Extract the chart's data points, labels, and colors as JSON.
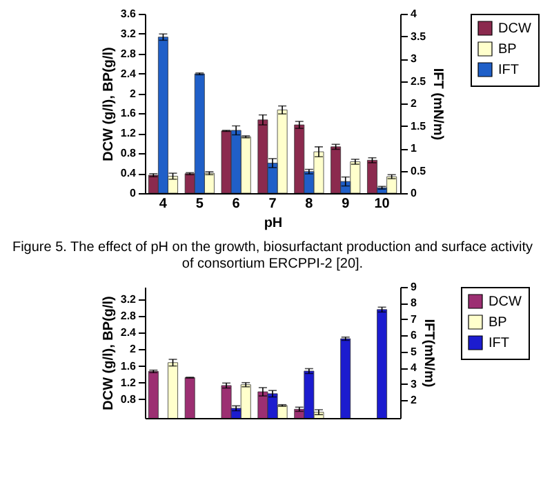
{
  "chart_data": [
    {
      "type": "bar",
      "xlabel": "pH",
      "ylabel": "DCW (g/l), BP(g/l)",
      "y2label": "IFT (mN/m)",
      "categories": [
        "4",
        "5",
        "6",
        "7",
        "8",
        "9",
        "10"
      ],
      "series": [
        {
          "name": "DCW",
          "color": "#8b2a4e",
          "values": [
            0.36,
            0.39,
            1.25,
            1.47,
            1.37,
            0.93,
            0.66
          ],
          "errors": [
            0.03,
            0.02,
            0.01,
            0.1,
            0.07,
            0.05,
            0.05
          ]
        },
        {
          "name": "IFT",
          "color": "#1f5fc8",
          "axis": "y2",
          "values": [
            3.48,
            2.66,
            1.4,
            0.67,
            0.48,
            0.26,
            0.12
          ],
          "errors": [
            0.07,
            0.02,
            0.1,
            0.1,
            0.05,
            0.1,
            0.03
          ]
        },
        {
          "name": "BP",
          "color": "#ffffcc",
          "values": [
            0.34,
            0.4,
            1.13,
            1.67,
            0.83,
            0.63,
            0.33
          ],
          "errors": [
            0.06,
            0.03,
            0.02,
            0.08,
            0.1,
            0.05,
            0.04
          ]
        }
      ],
      "ylim": [
        0,
        3.6
      ],
      "yticks": [
        0,
        0.4,
        0.8,
        1.2,
        1.6,
        2,
        2.4,
        2.8,
        3.2,
        3.6
      ],
      "y2lim": [
        0,
        4
      ],
      "y2ticks": [
        0,
        0.5,
        1,
        1.5,
        2,
        2.5,
        3,
        3.5,
        4
      ],
      "legend": "top right",
      "grid": false,
      "annotations": [
        "Figure 5. The effect of pH on the growth, biosurfactant production and surface activity of consortium ERCPPI-2 [20]."
      ]
    },
    {
      "type": "bar",
      "ylabel": "DCW (g/l), BP(g/l)",
      "y2label": "IFT(mN/m)",
      "categories": [
        null,
        null,
        null,
        null,
        null,
        null,
        null
      ],
      "series": [
        {
          "name": "DCW",
          "color": "#9c2f72",
          "values": [
            1.47,
            1.32,
            1.13,
            0.98,
            0.56,
            null,
            null
          ],
          "errors": [
            0.03,
            0.01,
            0.06,
            0.1,
            0.05,
            null,
            null
          ]
        },
        {
          "name": "IFT",
          "color": "#1c1ccf",
          "axis": "y2",
          "values": [
            null,
            null,
            1.5,
            2.4,
            3.8,
            5.8,
            7.6
          ],
          "errors": [
            null,
            null,
            0.15,
            0.2,
            0.15,
            0.1,
            0.15
          ]
        },
        {
          "name": "BP",
          "color": "#ffffcc",
          "values": [
            1.68,
            null,
            1.15,
            0.65,
            0.49,
            null,
            null
          ],
          "errors": [
            0.08,
            null,
            0.05,
            0.02,
            0.06,
            null,
            null
          ]
        }
      ],
      "ylim": [
        0.35,
        3.5
      ],
      "yticks": [
        0.8,
        1.2,
        1.6,
        2,
        2.4,
        2.8,
        3.2
      ],
      "y2lim": [
        0.9,
        9
      ],
      "y2ticks": [
        2,
        3,
        4,
        5,
        6,
        7,
        8,
        9
      ],
      "legend": "top right",
      "grid": false
    }
  ]
}
